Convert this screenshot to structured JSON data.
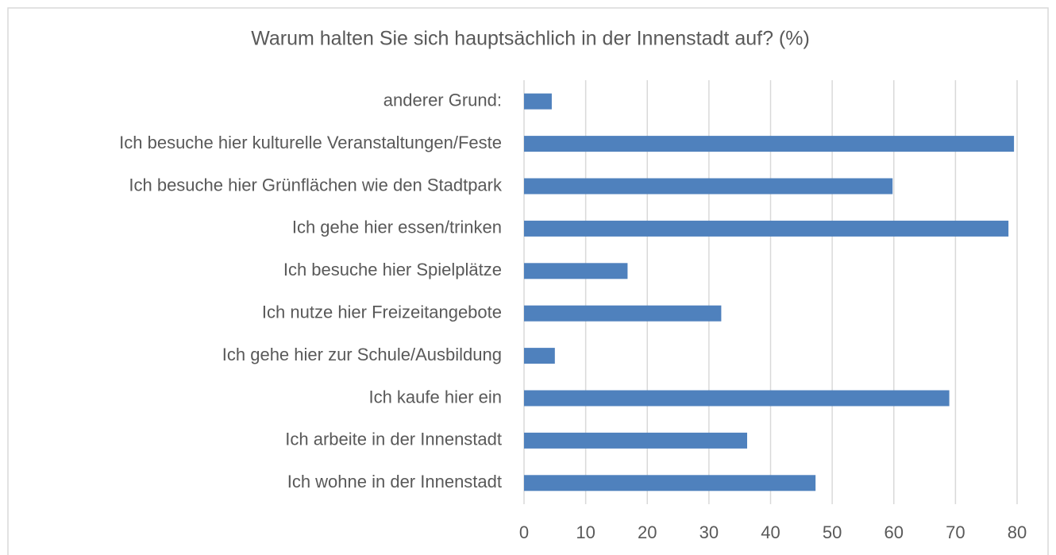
{
  "chart_data": {
    "type": "bar",
    "orientation": "horizontal",
    "title": "Warum halten Sie sich hauptsächlich in der Innenstadt auf? (%)",
    "categories": [
      "anderer Grund:",
      "Ich besuche hier kulturelle Veranstaltungen/Feste",
      "Ich besuche hier Grünflächen wie den Stadtpark",
      "Ich gehe hier essen/trinken",
      "Ich besuche hier Spielplätze",
      "Ich nutze hier Freizeitangebote",
      "Ich gehe hier zur Schule/Ausbildung",
      "Ich kaufe hier ein",
      "Ich arbeite in der Innenstadt",
      "Ich wohne in der Innenstadt"
    ],
    "values": [
      4.5,
      79.5,
      59.8,
      78.6,
      16.8,
      32,
      5,
      69,
      36.2,
      47.3
    ],
    "color": "#4f81bd",
    "xlim": [
      0,
      80
    ],
    "xticks": [
      0,
      10,
      20,
      30,
      40,
      50,
      60,
      70,
      80
    ],
    "grid": true
  }
}
